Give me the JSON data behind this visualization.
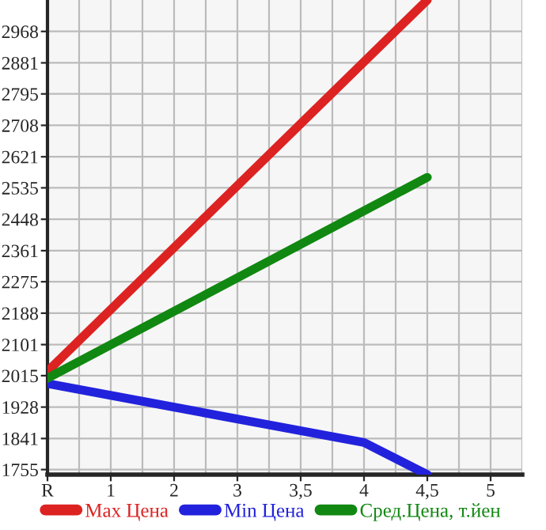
{
  "chart_data": {
    "type": "line",
    "categories": [
      "R",
      "1",
      "2",
      "3",
      "3,5",
      "4",
      "4,5",
      "5"
    ],
    "series": [
      {
        "name": "Max Цена",
        "color": "#dd2222",
        "values": [
          2027,
          null,
          null,
          null,
          null,
          null,
          3055,
          null
        ]
      },
      {
        "name": "Min Цена",
        "color": "#2222dd",
        "values": [
          1993,
          null,
          null,
          null,
          null,
          1830,
          1741,
          null
        ]
      },
      {
        "name": "Сред.Цена, т.йен",
        "color": "#118811",
        "values": [
          2008,
          null,
          null,
          null,
          null,
          null,
          2564,
          null
        ]
      }
    ],
    "ylim": [
      1741,
      3055
    ],
    "yticks": [
      1755,
      1841,
      1928,
      2015,
      2101,
      2188,
      2275,
      2361,
      2448,
      2535,
      2621,
      2708,
      2795,
      2881,
      2968
    ],
    "grid": true,
    "legend": "bottom",
    "marker": "none",
    "line_style": "solid"
  }
}
